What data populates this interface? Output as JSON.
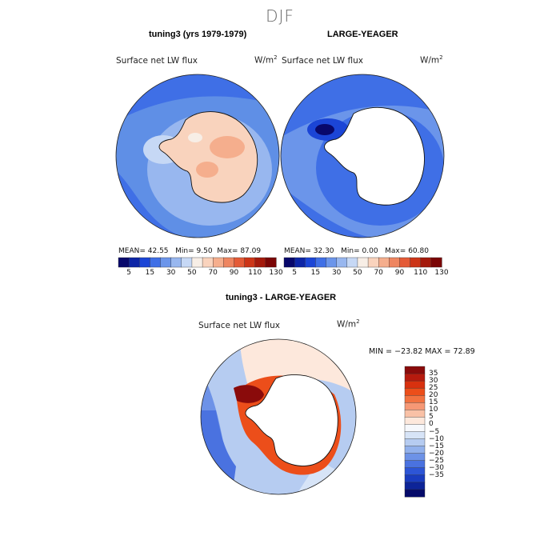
{
  "season": "DJF",
  "panels": [
    {
      "title": "tuning3 (yrs 1979-1979)",
      "variable": "Surface net LW flux",
      "units_base": "W/m",
      "units_exp": "2",
      "stats": {
        "mean_label": "MEAN=",
        "mean": "42.55",
        "min_label": "Min=",
        "min": "9.50",
        "max_label": "Max=",
        "max": "87.09"
      }
    },
    {
      "title": "LARGE-YEAGER",
      "variable": "Surface net LW flux",
      "units_base": "W/m",
      "units_exp": "2",
      "stats": {
        "mean_label": "MEAN=",
        "mean": "32.30",
        "min_label": "Min=",
        "min": "0.00",
        "max_label": "Max=",
        "max": "60.80"
      }
    }
  ],
  "abs_colorbar": {
    "labels": [
      "5",
      "15",
      "30",
      "50",
      "70",
      "90",
      "110",
      "130"
    ],
    "colors": [
      "#08086b",
      "#0d25a6",
      "#1b45d6",
      "#3f6fe6",
      "#6b95ea",
      "#98b7ef",
      "#c6d8f5",
      "#f7eee6",
      "#f9d3bd",
      "#f5ae8d",
      "#ee8560",
      "#e45b37",
      "#cc3517",
      "#a4190b",
      "#7a0505"
    ]
  },
  "diff_panel": {
    "title": "tuning3 - LARGE-YEAGER",
    "variable": "Surface net LW flux",
    "units_base": "W/m",
    "units_exp": "2",
    "stats": "MIN = −23.82 MAX =  72.89"
  },
  "diff_colorbar": {
    "labels": [
      "35",
      "30",
      "25",
      "20",
      "15",
      "10",
      "5",
      "0",
      "−5",
      "−10",
      "−15",
      "−20",
      "−25",
      "−30",
      "−35"
    ],
    "colors": [
      "#8a0b0b",
      "#b61a0e",
      "#d8310f",
      "#ec4e1a",
      "#f27240",
      "#f69875",
      "#f9c1a6",
      "#fde8dc",
      "#f6f8fc",
      "#d7e4f7",
      "#b6ccf1",
      "#92b1ec",
      "#6d92e7",
      "#4a72e0",
      "#2d55d6",
      "#1a3cbf",
      "#0d2498",
      "#050a6a"
    ]
  },
  "legend": {
    "continent": "Antarctica",
    "abs_field": "Surface net LW flux (W/m2)",
    "diff_field": "tuning3 minus LARGE-YEAGER"
  },
  "colors": {
    "ocean_mid": "#5f8fe6",
    "ocean_deep": "#3f6fe6",
    "ocean_light": "#9cbcf0",
    "land_warm": "#f7c7af",
    "land_pale": "#fbe3d5",
    "no_data": "#ffffff"
  }
}
